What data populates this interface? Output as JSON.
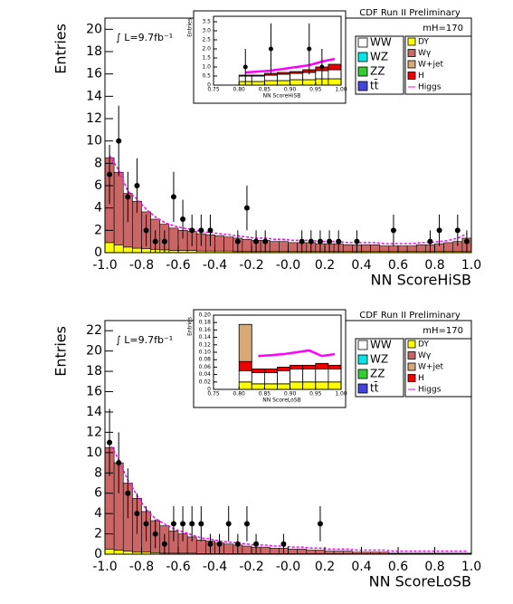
{
  "chart_data": [
    {
      "type": "histogram",
      "ylabel": "Entries",
      "xlabel": "NN ScoreHiSB",
      "annotations": {
        "experiment": "CDF Run II Preliminary",
        "mass": "mH=170",
        "lumi": "∫ L=9.7fb⁻¹"
      },
      "xlim": [
        -1,
        1
      ],
      "ylim": [
        0,
        21
      ],
      "xticks": [
        {
          "value": -1,
          "label": "-1.0"
        },
        {
          "value": -0.8,
          "label": "-0.8"
        },
        {
          "value": -0.6,
          "label": "-0.6"
        },
        {
          "value": -0.4,
          "label": "-0.4"
        },
        {
          "value": -0.2,
          "label": "-0.2"
        },
        {
          "value": 0,
          "label": "-0.0"
        },
        0.2,
        0.4,
        0.6,
        0.8,
        {
          "value": 1,
          "label": "1.0"
        }
      ],
      "yticks": [
        0,
        2,
        4,
        6,
        8,
        10,
        12,
        14,
        16,
        18,
        20
      ],
      "bins": [
        -1,
        -0.95,
        -0.9,
        -0.85,
        -0.8,
        -0.75,
        -0.7,
        -0.65,
        -0.6,
        -0.55,
        -0.5,
        -0.45,
        -0.4,
        -0.35,
        -0.3,
        -0.25,
        -0.2,
        -0.15,
        -0.1,
        -0.05,
        0,
        0.05,
        0.1,
        0.15,
        0.2,
        0.25,
        0.3,
        0.35,
        0.4,
        0.45,
        0.5,
        0.55,
        0.6,
        0.65,
        0.7,
        0.75,
        0.8,
        0.85,
        0.9,
        0.95,
        1
      ],
      "series": [
        {
          "name": "WW",
          "color": "#ffffff"
        },
        {
          "name": "WZ",
          "color": "#00e5e5"
        },
        {
          "name": "ZZ",
          "color": "#33cc33"
        },
        {
          "name": "tt̄",
          "color": "#4444dd"
        },
        {
          "name": "DY",
          "color": "#ffff00",
          "values": [
            0.9,
            0.7,
            0.5,
            0.4,
            0.35,
            0.3,
            0.25,
            0.2,
            0.2,
            0.2,
            0.15,
            0.15,
            0.15,
            0.15,
            0.1,
            0.1,
            0.1,
            0.1,
            0.1,
            0.1,
            0.1,
            0.1,
            0.1,
            0.1,
            0.1,
            0.1,
            0.1,
            0.1,
            0.1,
            0.1,
            0.1,
            0.1,
            0.1,
            0.1,
            0.1,
            0.1,
            0.1,
            0.1,
            0.1,
            0.1
          ]
        },
        {
          "name": "Wγ",
          "color": "#cc6666",
          "values": [
            7.6,
            6.5,
            4.8,
            4.2,
            3.3,
            2.7,
            2.3,
            2.0,
            1.8,
            1.7,
            1.55,
            1.45,
            1.35,
            1.25,
            1.2,
            1.1,
            1.0,
            1.0,
            0.9,
            0.9,
            0.8,
            0.8,
            0.8,
            0.7,
            0.7,
            0.7,
            0.6,
            0.6,
            0.6,
            0.6,
            0.5,
            0.5,
            0.5,
            0.5,
            0.6,
            0.6,
            0.7,
            0.8,
            0.9,
            1.2
          ]
        },
        {
          "name": "W+jet",
          "color": "#d9a877"
        },
        {
          "name": "H",
          "color": "#ee0000"
        },
        {
          "name": "Higgs",
          "color": "#ff00ff",
          "style": "line",
          "values": [
            8.7,
            7.4,
            5.5,
            4.8,
            3.9,
            3.2,
            2.7,
            2.4,
            2.2,
            2.1,
            1.9,
            1.8,
            1.7,
            1.6,
            1.5,
            1.4,
            1.3,
            1.3,
            1.2,
            1.2,
            1.1,
            1.1,
            1.1,
            1.0,
            1.0,
            1.0,
            0.9,
            0.9,
            0.9,
            0.9,
            0.8,
            0.8,
            0.8,
            0.8,
            0.9,
            0.9,
            1.0,
            1.1,
            1.3,
            1.7
          ]
        }
      ],
      "data_points": {
        "x": [
          -0.975,
          -0.925,
          -0.875,
          -0.825,
          -0.775,
          -0.725,
          -0.675,
          -0.625,
          -0.575,
          -0.525,
          -0.475,
          -0.425,
          -0.275,
          -0.225,
          -0.175,
          -0.125,
          0.075,
          0.125,
          0.175,
          0.225,
          0.275,
          0.375,
          0.575,
          0.775,
          0.825,
          0.925,
          0.975
        ],
        "values": [
          7,
          10,
          5,
          6,
          2,
          1,
          1,
          5,
          3,
          2,
          2,
          2,
          1,
          4,
          1,
          1,
          1,
          1,
          1,
          1,
          1,
          1,
          2,
          1,
          2,
          2,
          1
        ],
        "errors": [
          2.65,
          3.16,
          2.24,
          2.45,
          1.41,
          1,
          1,
          2.24,
          1.73,
          1.41,
          1.41,
          1.41,
          1,
          2,
          1,
          1,
          1,
          1,
          1,
          1,
          1,
          1,
          1.41,
          1,
          1.41,
          1.41,
          1
        ]
      },
      "inset": {
        "type": "histogram",
        "ylabel": "Entries",
        "xlabel": "NN ScoreHiSB",
        "xlim": [
          0.75,
          1
        ],
        "ylim": [
          0,
          3.8
        ],
        "xticks": [
          0.75,
          {
            "value": 0.8,
            "label": "0.80"
          },
          0.85,
          {
            "value": 0.9,
            "label": "0.90"
          },
          0.95,
          {
            "value": 1,
            "label": "1.00"
          }
        ],
        "yticks": [
          0,
          0.5,
          {
            "value": 1,
            "label": "1.0"
          },
          1.5,
          {
            "value": 2,
            "label": "2.0"
          },
          2.5,
          {
            "value": 3,
            "label": "3.0"
          },
          3.5
        ],
        "bins": [
          0.75,
          0.775,
          0.8,
          0.825,
          0.85,
          0.875,
          0.9,
          0.925,
          0.95,
          0.975,
          1
        ],
        "series": [
          {
            "name": "DY",
            "color": "#ffff00",
            "values": [
              0,
              0,
              0.2,
              0.2,
              0.25,
              0.25,
              0.3,
              0.3,
              0.35,
              0.35
            ]
          },
          {
            "name": "WW",
            "color": "#ffffff",
            "values": [
              0,
              0,
              0.3,
              0.3,
              0.3,
              0.35,
              0.35,
              0.4,
              0.45,
              0.5
            ]
          },
          {
            "name": "H",
            "color": "#ee0000",
            "values": [
              0,
              0,
              0.05,
              0.05,
              0.1,
              0.1,
              0.1,
              0.15,
              0.2,
              0.3
            ]
          },
          {
            "name": "Higgs",
            "color": "#ff00ff",
            "style": "line",
            "values": [
              null,
              null,
              0.7,
              0.75,
              0.8,
              0.9,
              1.0,
              1.1,
              1.3,
              1.45
            ]
          }
        ],
        "data_points": {
          "x": [
            0.8125,
            0.8625,
            0.9375,
            0.9625
          ],
          "values": [
            1,
            2,
            2,
            1
          ],
          "errors": [
            1,
            1.41,
            1.41,
            1
          ]
        }
      }
    },
    {
      "type": "histogram",
      "ylabel": "Entries",
      "xlabel": "NN ScoreLoSB",
      "annotations": {
        "experiment": "CDF Run II Preliminary",
        "mass": "mH=170",
        "lumi": "∫ L=9.7fb⁻¹"
      },
      "xlim": [
        -1,
        1
      ],
      "ylim": [
        0,
        23
      ],
      "xticks": [
        {
          "value": -1,
          "label": "-1.0"
        },
        {
          "value": -0.8,
          "label": "-0.8"
        },
        {
          "value": -0.6,
          "label": "-0.6"
        },
        {
          "value": -0.4,
          "label": "-0.4"
        },
        {
          "value": -0.2,
          "label": "-0.2"
        },
        {
          "value": 0,
          "label": "-0.0"
        },
        0.2,
        0.4,
        0.6,
        0.8,
        {
          "value": 1,
          "label": "1.0"
        }
      ],
      "yticks": [
        0,
        2,
        4,
        6,
        8,
        10,
        12,
        14,
        16,
        18,
        20,
        22
      ],
      "bins": [
        -1,
        -0.95,
        -0.9,
        -0.85,
        -0.8,
        -0.75,
        -0.7,
        -0.65,
        -0.6,
        -0.55,
        -0.5,
        -0.45,
        -0.4,
        -0.35,
        -0.3,
        -0.25,
        -0.2,
        -0.15,
        -0.1,
        -0.05,
        0,
        0.05,
        0.1,
        0.15,
        0.2,
        0.25,
        0.3,
        0.35,
        0.4,
        0.45,
        0.5,
        0.55,
        0.6,
        0.65,
        0.7,
        0.75,
        0.8,
        0.85,
        0.9,
        0.95,
        1
      ],
      "series": [
        {
          "name": "WW",
          "color": "#ffffff"
        },
        {
          "name": "WZ",
          "color": "#00e5e5"
        },
        {
          "name": "ZZ",
          "color": "#33cc33"
        },
        {
          "name": "tt̄",
          "color": "#4444dd"
        },
        {
          "name": "DY",
          "color": "#ffff00",
          "values": [
            0.5,
            0.4,
            0.3,
            0.2,
            0.2,
            0.15,
            0.1,
            0.1,
            0.1,
            0.1,
            0.05,
            0.05,
            0.05,
            0.05,
            0.05,
            0.05,
            0.05,
            0.05,
            0.05,
            0.05,
            0.05,
            0.05,
            0.05,
            0.05,
            0.05,
            0.05,
            0.05,
            0.05,
            0.05,
            0.05,
            0.05,
            0.05,
            0.05,
            0.05,
            0.05,
            0.05,
            0.05,
            0.05,
            0.05,
            0.05
          ]
        },
        {
          "name": "Wγ",
          "color": "#cc6666",
          "values": [
            10,
            8.6,
            6.7,
            5.3,
            4.0,
            3.15,
            2.7,
            2.2,
            1.9,
            1.6,
            1.35,
            1.25,
            1.05,
            0.95,
            0.85,
            0.75,
            0.65,
            0.65,
            0.55,
            0.55,
            0.45,
            0.45,
            0.35,
            0.35,
            0.25,
            0.25,
            0.25,
            0.15,
            0.15,
            0.15,
            0.15,
            0.05,
            0.05,
            0.05,
            0.05,
            0.05,
            0.05,
            0.05,
            0.05,
            0.05
          ]
        },
        {
          "name": "W+jet",
          "color": "#d9a877"
        },
        {
          "name": "H",
          "color": "#ee0000"
        },
        {
          "name": "Higgs",
          "color": "#ff00ff",
          "style": "line",
          "values": [
            11,
            9.3,
            7.3,
            5.8,
            4.4,
            3.5,
            3.0,
            2.5,
            2.2,
            1.9,
            1.6,
            1.5,
            1.3,
            1.2,
            1.1,
            1.0,
            0.9,
            0.9,
            0.8,
            0.8,
            0.7,
            0.7,
            0.6,
            0.6,
            0.5,
            0.5,
            0.5,
            0.4,
            0.4,
            0.4,
            0.4,
            0.3,
            0.3,
            0.3,
            0.3,
            0.3,
            0.3,
            0.3,
            0.3,
            0.3
          ]
        }
      ],
      "data_points": {
        "x": [
          -0.975,
          -0.925,
          -0.875,
          -0.825,
          -0.775,
          -0.725,
          -0.675,
          -0.625,
          -0.575,
          -0.525,
          -0.475,
          -0.425,
          -0.375,
          -0.325,
          -0.275,
          -0.225,
          -0.175,
          -0.025,
          0.175
        ],
        "values": [
          11,
          9,
          6,
          4,
          3,
          2,
          1,
          3,
          3,
          3,
          3,
          1,
          1,
          3,
          1,
          3,
          1,
          1,
          3
        ],
        "errors": [
          3.32,
          3,
          2.45,
          2,
          1.73,
          1.41,
          1,
          1.73,
          1.73,
          1.73,
          1.73,
          1,
          1,
          1.73,
          1,
          1.73,
          1,
          1,
          1.73
        ]
      },
      "inset": {
        "type": "histogram",
        "ylabel": "Entries",
        "xlabel": "NN ScoreLoSB",
        "xlim": [
          0.75,
          1
        ],
        "ylim": [
          0,
          0.2
        ],
        "xticks": [
          0.75,
          {
            "value": 0.8,
            "label": "0.80"
          },
          0.85,
          {
            "value": 0.9,
            "label": "0.90"
          },
          0.95,
          {
            "value": 1,
            "label": "1.00"
          }
        ],
        "yticks": [
          0,
          0.02,
          0.04,
          0.06,
          0.08,
          {
            "value": 0.1,
            "label": "0.10"
          },
          0.12,
          0.14,
          0.16,
          0.18,
          {
            "value": 0.2,
            "label": "0.20"
          }
        ],
        "bins": [
          0.75,
          0.775,
          0.8,
          0.825,
          0.85,
          0.875,
          0.9,
          0.925,
          0.95,
          0.975,
          1
        ],
        "series": [
          {
            "name": "DY",
            "color": "#ffff00",
            "values": [
              0,
              0,
              0.02,
              0.015,
              0.015,
              0.015,
              0.02,
              0.02,
              0.02,
              0.02
            ]
          },
          {
            "name": "WW",
            "color": "#ffffff",
            "values": [
              0,
              0,
              0.03,
              0.03,
              0.03,
              0.035,
              0.035,
              0.035,
              0.035,
              0.035
            ]
          },
          {
            "name": "H",
            "color": "#ee0000",
            "values": [
              0,
              0,
              0.025,
              0.01,
              0.01,
              0.01,
              0.01,
              0.01,
              0.015,
              0.01
            ]
          },
          {
            "name": "W+jet",
            "color": "#d9a877",
            "values": [
              0,
              0,
              0.1,
              0,
              0,
              0,
              0,
              0,
              0,
              0
            ]
          },
          {
            "name": "Higgs",
            "color": "#ff00ff",
            "style": "line",
            "values": [
              null,
              null,
              null,
              0.09,
              0.092,
              0.095,
              0.1,
              0.105,
              0.09,
              0.095
            ]
          }
        ]
      }
    }
  ]
}
